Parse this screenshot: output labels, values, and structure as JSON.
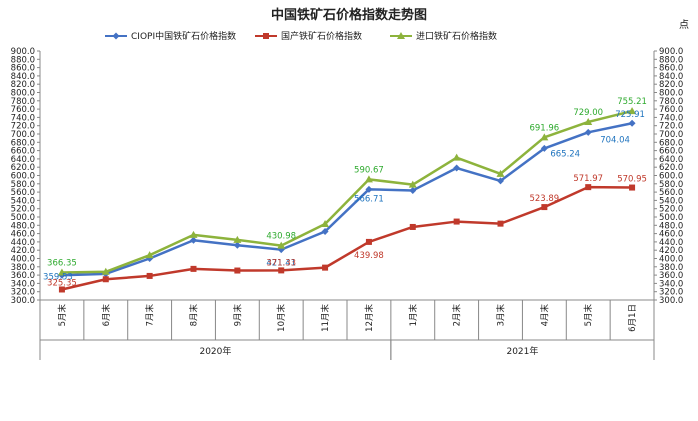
{
  "chart_data": {
    "type": "line",
    "title": "中国铁矿石价格指数走势图",
    "unit_label": "点",
    "ylim": [
      300,
      900
    ],
    "ytick_step": 20,
    "grid": false,
    "legend_position": "top",
    "categories": [
      "5月末",
      "6月末",
      "7月末",
      "8月末",
      "9月末",
      "10月末",
      "11月末",
      "12月末",
      "1月末",
      "2月末",
      "3月末",
      "4月末",
      "5月末",
      "6月1日"
    ],
    "year_groups": [
      {
        "label": "2020年",
        "start": 0,
        "end": 7
      },
      {
        "label": "2021年",
        "start": 8,
        "end": 13
      }
    ],
    "series": [
      {
        "name": "CIOPI中国铁矿石价格指数",
        "color": "#4472C4",
        "marker": "diamond",
        "values": [
          359.53,
          363.0,
          400.0,
          444.0,
          432.0,
          421.41,
          465.0,
          566.71,
          564.0,
          618.0,
          587.0,
          665.24,
          704.04,
          725.91
        ],
        "labels": {
          "0": "359.53",
          "5": "421.41",
          "7": "566.71",
          "11": "665.24",
          "12": "704.04",
          "13": "725.91"
        }
      },
      {
        "name": "国产铁矿石价格指数",
        "color": "#C0392B",
        "marker": "square",
        "values": [
          325.35,
          350.0,
          358.0,
          375.0,
          371.0,
          371.33,
          378.0,
          439.98,
          476.0,
          489.0,
          484.0,
          523.89,
          571.97,
          570.95
        ],
        "labels": {
          "0": "325.35",
          "5": "371.33",
          "7": "439.98",
          "11": "523.89",
          "12": "571.97",
          "13": "570.95"
        }
      },
      {
        "name": "进口铁矿石价格指数",
        "color": "#8DB33C",
        "marker": "triangle",
        "values": [
          366.35,
          368.0,
          408.0,
          457.0,
          445.0,
          430.98,
          483.0,
          590.67,
          578.0,
          643.0,
          604.0,
          691.96,
          729.0,
          755.21
        ],
        "labels": {
          "0": "366.35",
          "5": "430.98",
          "7": "590.67",
          "11": "691.96",
          "12": "729.00",
          "13": "755.21"
        }
      }
    ],
    "label_colors": [
      "#1E73BE",
      "#C0392B",
      "#2EAA2E"
    ]
  }
}
